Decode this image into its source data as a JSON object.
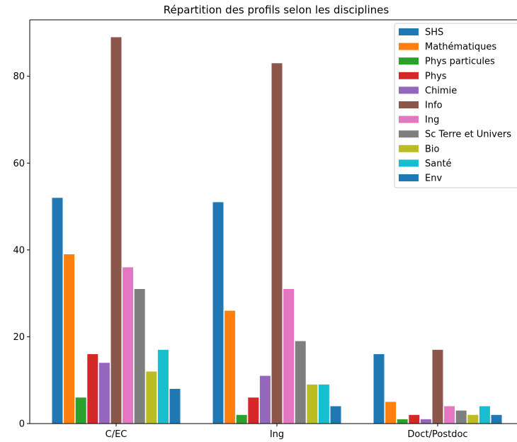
{
  "chart_data": {
    "type": "bar",
    "title": "Répartition des profils selon les disciplines",
    "xlabel": "",
    "ylabel": "",
    "categories": [
      "C/EC",
      "Ing",
      "Doct/Postdoc"
    ],
    "ylim": [
      0,
      93
    ],
    "yticks": [
      0,
      20,
      40,
      60,
      80
    ],
    "grid": false,
    "legend_position": "top-right",
    "series": [
      {
        "name": "SHS",
        "color": "#1f77b4",
        "values": [
          52,
          51,
          16
        ]
      },
      {
        "name": "Mathématiques",
        "color": "#ff7f0e",
        "values": [
          39,
          26,
          5
        ]
      },
      {
        "name": "Phys particules",
        "color": "#2ca02c",
        "values": [
          6,
          2,
          1
        ]
      },
      {
        "name": "Phys",
        "color": "#d62728",
        "values": [
          16,
          6,
          2
        ]
      },
      {
        "name": "Chimie",
        "color": "#9467bd",
        "values": [
          14,
          11,
          1
        ]
      },
      {
        "name": "Info",
        "color": "#8c564b",
        "values": [
          89,
          83,
          17
        ]
      },
      {
        "name": "Ing",
        "color": "#e377c2",
        "values": [
          36,
          31,
          4
        ]
      },
      {
        "name": "Sc Terre et Univers",
        "color": "#7f7f7f",
        "values": [
          31,
          19,
          3
        ]
      },
      {
        "name": "Bio",
        "color": "#bcbd22",
        "values": [
          12,
          9,
          2
        ]
      },
      {
        "name": "Santé",
        "color": "#17becf",
        "values": [
          17,
          9,
          4
        ]
      },
      {
        "name": "Env",
        "color": "#1f77b4",
        "values": [
          8,
          4,
          2
        ]
      }
    ]
  }
}
